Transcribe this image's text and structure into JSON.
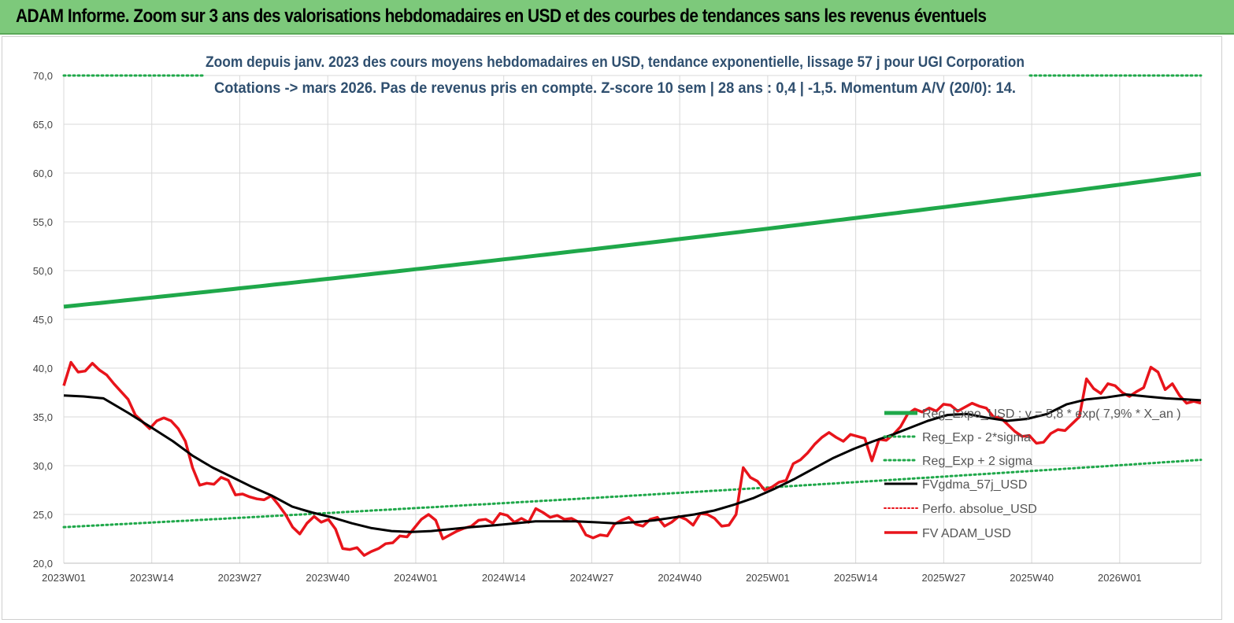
{
  "banner": {
    "title": "ADAM Informe. Zoom sur 3 ans des valorisations hebdomadaires en USD et des courbes de tendances sans les revenus éventuels"
  },
  "colors": {
    "banner_bg": "#7dc97b",
    "reg_exp": "#1fa84a",
    "fv_adam": "#e8141b",
    "fv_gdma": "#000000",
    "perfo": "#e8141b",
    "subtitle": "#2f4f6f"
  },
  "chart_data": {
    "type": "line",
    "subtitle_lines": [
      "Zoom depuis janv. 2023 des cours moyens hebdomadaires en USD, tendance exponentielle, lissage 57 j pour UGI Corporation",
      "Cotations -> mars 2026. Pas de revenus pris en compte. Z-score 10 sem | 28 ans : 0,4 | -1,5. Momentum A/V (20/0): 14."
    ],
    "ylim": [
      20,
      70
    ],
    "yticks": [
      "20,0",
      "25,0",
      "30,0",
      "35,0",
      "40,0",
      "45,0",
      "50,0",
      "55,0",
      "60,0",
      "65,0",
      "70,0"
    ],
    "xtick_labels": [
      "2023W01",
      "2023W14",
      "2023W27",
      "2023W40",
      "2024W01",
      "2024W14",
      "2024W27",
      "2024W40",
      "2025W01",
      "2025W14",
      "2025W27",
      "2025W40",
      "2026W01"
    ],
    "x_count": 169,
    "grid": true,
    "legend_position": "bottom-right",
    "series": [
      {
        "name": "Reg_Expo_USD : y = 5,8 * exp( 7,9% * X_an )",
        "style": "solid",
        "color": "#1fa84a",
        "start": 46.3,
        "end": 59.9
      },
      {
        "name": "Reg_Exp - 2*sigma",
        "style": "dotted",
        "color": "#1fa84a",
        "start": 23.7,
        "end": 30.6
      },
      {
        "name": "Reg_Exp + 2 sigma",
        "style": "dotted",
        "color": "#1fa84a",
        "start": 70.0,
        "end": 70.0
      },
      {
        "name": "FVgdma_57j_USD",
        "style": "solid",
        "color": "#000000",
        "points": [
          [
            0,
            37.2
          ],
          [
            4,
            37.1
          ],
          [
            8,
            36.9
          ],
          [
            13,
            35.4
          ],
          [
            18,
            33.8
          ],
          [
            22,
            32.5
          ],
          [
            26,
            31
          ],
          [
            30,
            29.8
          ],
          [
            34,
            28.8
          ],
          [
            38,
            27.8
          ],
          [
            42,
            26.9
          ],
          [
            46,
            25.8
          ],
          [
            50,
            25.2
          ],
          [
            54,
            24.7
          ],
          [
            58,
            24.1
          ],
          [
            62,
            23.6
          ],
          [
            66,
            23.3
          ],
          [
            70,
            23.2
          ],
          [
            74,
            23.3
          ],
          [
            78,
            23.5
          ],
          [
            82,
            23.7
          ],
          [
            87,
            23.9
          ],
          [
            91,
            24.1
          ],
          [
            95,
            24.3
          ],
          [
            99,
            24.3
          ],
          [
            103,
            24.3
          ],
          [
            107,
            24.2
          ],
          [
            111,
            24.1
          ],
          [
            115,
            24.2
          ],
          [
            119,
            24.4
          ],
          [
            123,
            24.7
          ],
          [
            127,
            25
          ],
          [
            131,
            25.4
          ],
          [
            135,
            26
          ],
          [
            139,
            26.7
          ],
          [
            143,
            27.6
          ],
          [
            147,
            28.6
          ],
          [
            151,
            29.7
          ],
          [
            155,
            30.8
          ],
          [
            159,
            31.7
          ],
          [
            163,
            32.5
          ],
          [
            167,
            33.2
          ],
          [
            171,
            34
          ],
          [
            174,
            34.6
          ],
          [
            178,
            35.2
          ],
          [
            182,
            35.3
          ],
          [
            186,
            34.9
          ],
          [
            190,
            34.6
          ],
          [
            194,
            34.8
          ],
          [
            198,
            35.3
          ],
          [
            202,
            36.3
          ],
          [
            206,
            36.8
          ],
          [
            210,
            37
          ],
          [
            214,
            37.3
          ],
          [
            218,
            37.1
          ],
          [
            222,
            36.9
          ],
          [
            226,
            36.8
          ],
          [
            229,
            36.7
          ]
        ]
      },
      {
        "name": "Perfo. absolue_USD",
        "style": "dotted",
        "color": "#e8141b"
      },
      {
        "name": "FV ADAM_USD",
        "style": "solid",
        "color": "#e8141b",
        "points": [
          [
            0,
            38.2
          ],
          [
            1,
            40.6
          ],
          [
            2,
            39.6
          ],
          [
            3,
            39.7
          ],
          [
            4,
            40.5
          ],
          [
            5,
            39.8
          ],
          [
            6,
            39.3
          ],
          [
            7,
            38.4
          ],
          [
            8,
            37.6
          ],
          [
            9,
            36.8
          ],
          [
            10,
            35.2
          ],
          [
            11,
            34.5
          ],
          [
            12,
            33.8
          ],
          [
            13,
            34.6
          ],
          [
            14,
            34.9
          ],
          [
            15,
            34.6
          ],
          [
            16,
            33.8
          ],
          [
            17,
            32.5
          ],
          [
            18,
            29.8
          ],
          [
            19,
            28.0
          ],
          [
            20,
            28.2
          ],
          [
            21,
            28.1
          ],
          [
            22,
            28.8
          ],
          [
            23,
            28.5
          ],
          [
            24,
            27
          ],
          [
            25,
            27.1
          ],
          [
            26,
            26.8
          ],
          [
            27,
            26.6
          ],
          [
            28,
            26.5
          ],
          [
            29,
            26.9
          ],
          [
            30,
            26
          ],
          [
            31,
            25
          ],
          [
            32,
            23.7
          ],
          [
            33,
            23
          ],
          [
            34,
            24.1
          ],
          [
            35,
            24.8
          ],
          [
            36,
            24.2
          ],
          [
            37,
            24.5
          ],
          [
            38,
            23.5
          ],
          [
            39,
            21.5
          ],
          [
            40,
            21.4
          ],
          [
            41,
            21.6
          ],
          [
            42,
            20.8
          ],
          [
            43,
            21.2
          ],
          [
            44,
            21.5
          ],
          [
            45,
            22
          ],
          [
            46,
            22.1
          ],
          [
            47,
            22.8
          ],
          [
            48,
            22.7
          ],
          [
            49,
            23.6
          ],
          [
            50,
            24.5
          ],
          [
            51,
            25
          ],
          [
            52,
            24.4
          ],
          [
            53,
            22.5
          ],
          [
            54,
            22.9
          ],
          [
            55,
            23.3
          ],
          [
            56,
            23.6
          ],
          [
            57,
            23.8
          ],
          [
            58,
            24.4
          ],
          [
            59,
            24.5
          ],
          [
            60,
            24.1
          ],
          [
            61,
            25.1
          ],
          [
            62,
            24.9
          ],
          [
            63,
            24.2
          ],
          [
            64,
            24.6
          ],
          [
            65,
            24.2
          ],
          [
            66,
            25.6
          ],
          [
            67,
            25.2
          ],
          [
            68,
            24.7
          ],
          [
            69,
            24.9
          ],
          [
            70,
            24.5
          ],
          [
            71,
            24.6
          ],
          [
            72,
            24.2
          ],
          [
            73,
            22.9
          ],
          [
            74,
            22.6
          ],
          [
            75,
            22.9
          ],
          [
            76,
            22.8
          ],
          [
            77,
            24
          ],
          [
            78,
            24.4
          ],
          [
            79,
            24.7
          ],
          [
            80,
            24
          ],
          [
            81,
            23.8
          ],
          [
            82,
            24.5
          ],
          [
            83,
            24.7
          ],
          [
            84,
            23.8
          ],
          [
            85,
            24.2
          ],
          [
            86,
            24.8
          ],
          [
            87,
            24.5
          ],
          [
            88,
            23.9
          ],
          [
            89,
            25.1
          ],
          [
            90,
            25
          ],
          [
            91,
            24.6
          ],
          [
            92,
            23.8
          ],
          [
            93,
            23.9
          ],
          [
            94,
            25
          ],
          [
            95,
            29.8
          ],
          [
            96,
            28.8
          ],
          [
            97,
            28.4
          ],
          [
            98,
            27.5
          ],
          [
            99,
            27.8
          ],
          [
            100,
            28.3
          ],
          [
            101,
            28.5
          ],
          [
            102,
            30.2
          ],
          [
            103,
            30.6
          ],
          [
            104,
            31.3
          ],
          [
            105,
            32.2
          ],
          [
            106,
            32.9
          ],
          [
            107,
            33.4
          ],
          [
            108,
            32.9
          ],
          [
            109,
            32.5
          ],
          [
            110,
            33.2
          ],
          [
            111,
            33
          ],
          [
            112,
            32.8
          ],
          [
            113,
            30.5
          ],
          [
            114,
            32.7
          ],
          [
            115,
            32.6
          ],
          [
            116,
            33.2
          ],
          [
            117,
            34
          ],
          [
            118,
            35.3
          ],
          [
            119,
            35.8
          ],
          [
            120,
            35.5
          ],
          [
            121,
            35.9
          ],
          [
            122,
            35.6
          ],
          [
            123,
            36.3
          ],
          [
            124,
            36.2
          ],
          [
            125,
            35.6
          ],
          [
            126,
            36
          ],
          [
            127,
            36.4
          ],
          [
            128,
            36.1
          ],
          [
            129,
            35.9
          ],
          [
            130,
            35
          ],
          [
            131,
            34.9
          ],
          [
            132,
            34.2
          ],
          [
            133,
            33.5
          ],
          [
            134,
            33
          ],
          [
            135,
            33.1
          ],
          [
            136,
            32.3
          ],
          [
            137,
            32.4
          ],
          [
            138,
            33.3
          ],
          [
            139,
            33.7
          ],
          [
            140,
            33.6
          ],
          [
            141,
            34.3
          ],
          [
            142,
            35
          ],
          [
            143,
            38.9
          ],
          [
            144,
            37.9
          ],
          [
            145,
            37.4
          ],
          [
            146,
            38.4
          ],
          [
            147,
            38.2
          ],
          [
            148,
            37.5
          ],
          [
            149,
            37.1
          ],
          [
            150,
            37.6
          ],
          [
            151,
            38
          ],
          [
            152,
            40.1
          ],
          [
            153,
            39.6
          ],
          [
            154,
            37.8
          ],
          [
            155,
            38.4
          ],
          [
            156,
            37.2
          ],
          [
            157,
            36.4
          ],
          [
            158,
            36.6
          ],
          [
            159,
            36.4
          ]
        ]
      }
    ]
  }
}
